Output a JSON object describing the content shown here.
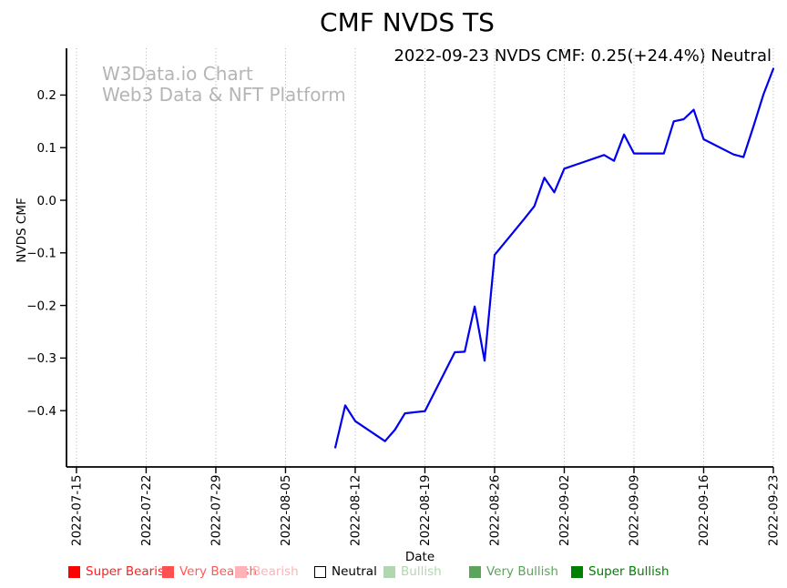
{
  "page": {
    "title": "CMF NVDS TS",
    "annotation": "2022-09-23 NVDS CMF: 0.25(+24.4%) Neutral",
    "watermark_line1": "W3Data.io Chart",
    "watermark_line2": "Web3 Data & NFT Platform"
  },
  "chart_data": {
    "type": "line",
    "title": "CMF NVDS TS",
    "xlabel": "Date",
    "ylabel": "NVDS CMF",
    "line_color": "#0000ee",
    "grid_color": "#b0b0b0",
    "axis_color": "#000000",
    "grid": "vertical-dotted",
    "legend_position": "bottom",
    "xlim": [
      "2022-07-14",
      "2022-09-23"
    ],
    "ylim": [
      -0.507,
      0.289
    ],
    "x_tick_labels": [
      "2022-07-15",
      "2022-07-22",
      "2022-07-29",
      "2022-08-05",
      "2022-08-12",
      "2022-08-19",
      "2022-08-26",
      "2022-09-02",
      "2022-09-09",
      "2022-09-16",
      "2022-09-23"
    ],
    "y_ticks": [
      0.2,
      0.1,
      0.0,
      -0.1,
      -0.2,
      -0.3,
      -0.4
    ],
    "series": [
      {
        "name": "NVDS CMF",
        "dates": [
          "2022-08-10",
          "2022-08-11",
          "2022-08-12",
          "2022-08-15",
          "2022-08-16",
          "2022-08-17",
          "2022-08-18",
          "2022-08-19",
          "2022-08-22",
          "2022-08-23",
          "2022-08-24",
          "2022-08-25",
          "2022-08-26",
          "2022-08-29",
          "2022-08-30",
          "2022-08-31",
          "2022-09-01",
          "2022-09-02",
          "2022-09-06",
          "2022-09-07",
          "2022-09-08",
          "2022-09-09",
          "2022-09-12",
          "2022-09-13",
          "2022-09-14",
          "2022-09-15",
          "2022-09-16",
          "2022-09-19",
          "2022-09-20",
          "2022-09-21",
          "2022-09-22",
          "2022-09-23"
        ],
        "values": [
          -0.47,
          -0.39,
          -0.42,
          -0.458,
          -0.436,
          -0.405,
          -0.403,
          -0.401,
          -0.289,
          -0.288,
          -0.202,
          -0.305,
          -0.104,
          -0.035,
          -0.011,
          0.043,
          0.015,
          0.06,
          0.086,
          0.075,
          0.125,
          0.089,
          0.089,
          0.15,
          0.154,
          0.172,
          0.116,
          0.087,
          0.082,
          0.14,
          0.201,
          0.25
        ]
      }
    ],
    "latest_point": {
      "date": "2022-09-23",
      "value": 0.25,
      "change": "+24.4%",
      "sentiment": "Neutral"
    }
  },
  "legend": {
    "items": [
      {
        "label": "Super Bearish",
        "color": "#ff0000",
        "text_color": "#ff2020",
        "border": false
      },
      {
        "label": "Very Bearish",
        "color": "#ff5050",
        "text_color": "#ff5a5a",
        "border": false
      },
      {
        "label": "Bearish",
        "color": "#ffb2b8",
        "text_color": "#ffb2b8",
        "border": false
      },
      {
        "label": "Neutral",
        "color": "#ffffff",
        "text_color": "#000000",
        "border": true
      },
      {
        "label": "Bullish",
        "color": "#b0d8b0",
        "text_color": "#b0d8b0",
        "border": false
      },
      {
        "label": "Very Bullish",
        "color": "#5aa55a",
        "text_color": "#5aa55a",
        "border": false
      },
      {
        "label": "Super Bullish",
        "color": "#008000",
        "text_color": "#008000",
        "border": false
      }
    ]
  }
}
